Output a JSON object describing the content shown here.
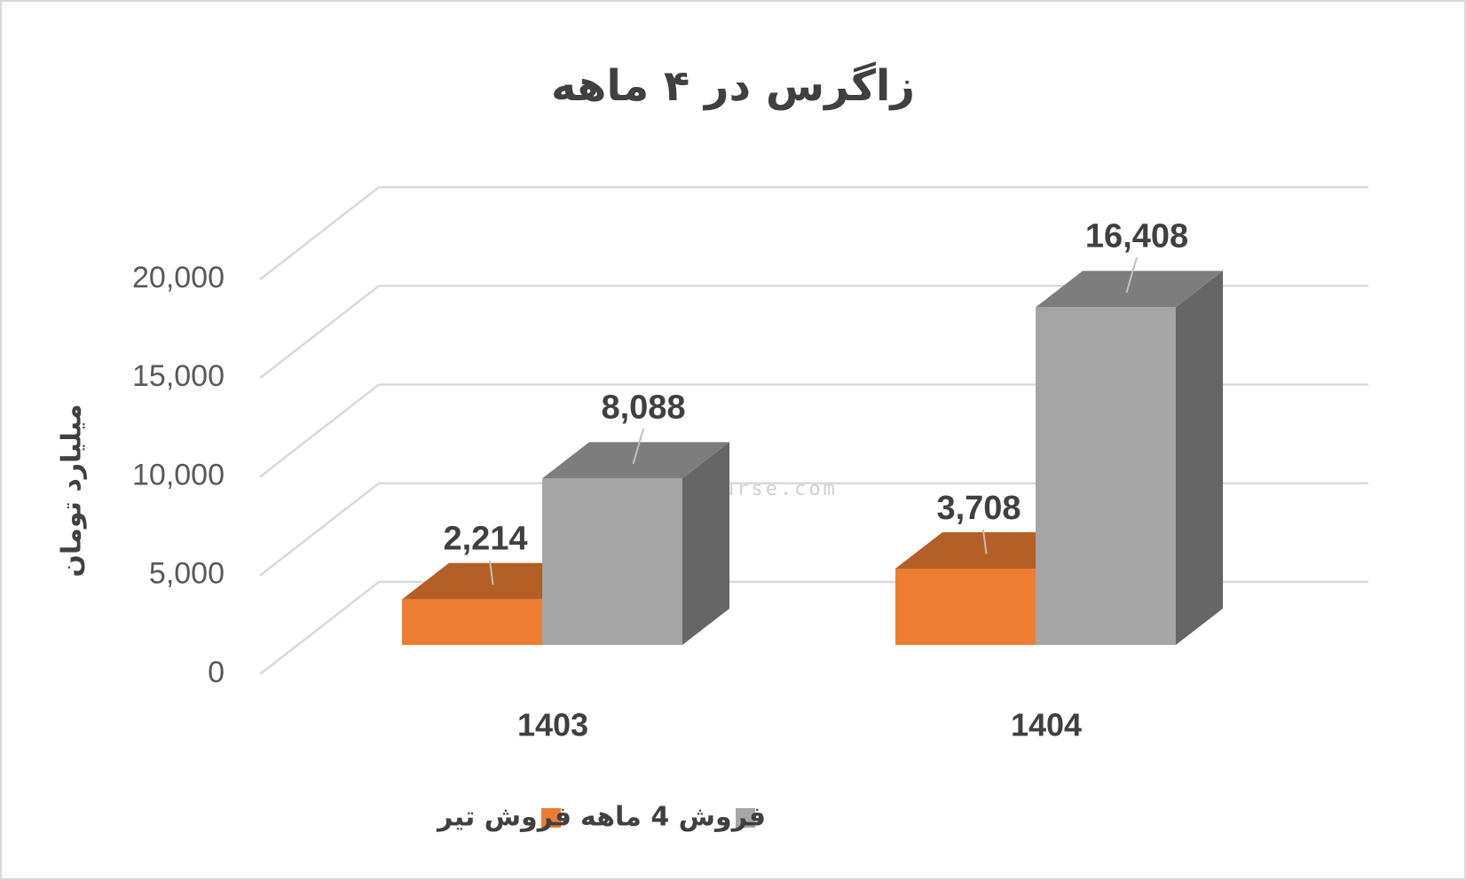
{
  "chart_data": {
    "type": "bar3d",
    "title": "زاگرس در ۴ ماهه",
    "y_label": "میلیارد تومان",
    "watermark": "nabzebourse.com",
    "categories": [
      "1403",
      "1404"
    ],
    "series": [
      {
        "name": "فروش تیر",
        "color": "#ED7D31",
        "values": [
          2214,
          3708
        ],
        "value_labels": [
          "2,214",
          "3,708"
        ]
      },
      {
        "name": "فروش 4  ماهه",
        "color": "#A5A5A5",
        "values": [
          8088,
          16408
        ],
        "value_labels": [
          "8,088",
          "16,408"
        ]
      }
    ],
    "ylim": [
      0,
      20000
    ],
    "yticks": [
      0,
      {
        "value": 5000,
        "label": "5,000"
      },
      {
        "value": 10000,
        "label": "10,000"
      },
      {
        "value": 15000,
        "label": "15,000"
      },
      {
        "value": 20000,
        "label": "20,000"
      }
    ],
    "grid": true,
    "legend": "bottom"
  }
}
